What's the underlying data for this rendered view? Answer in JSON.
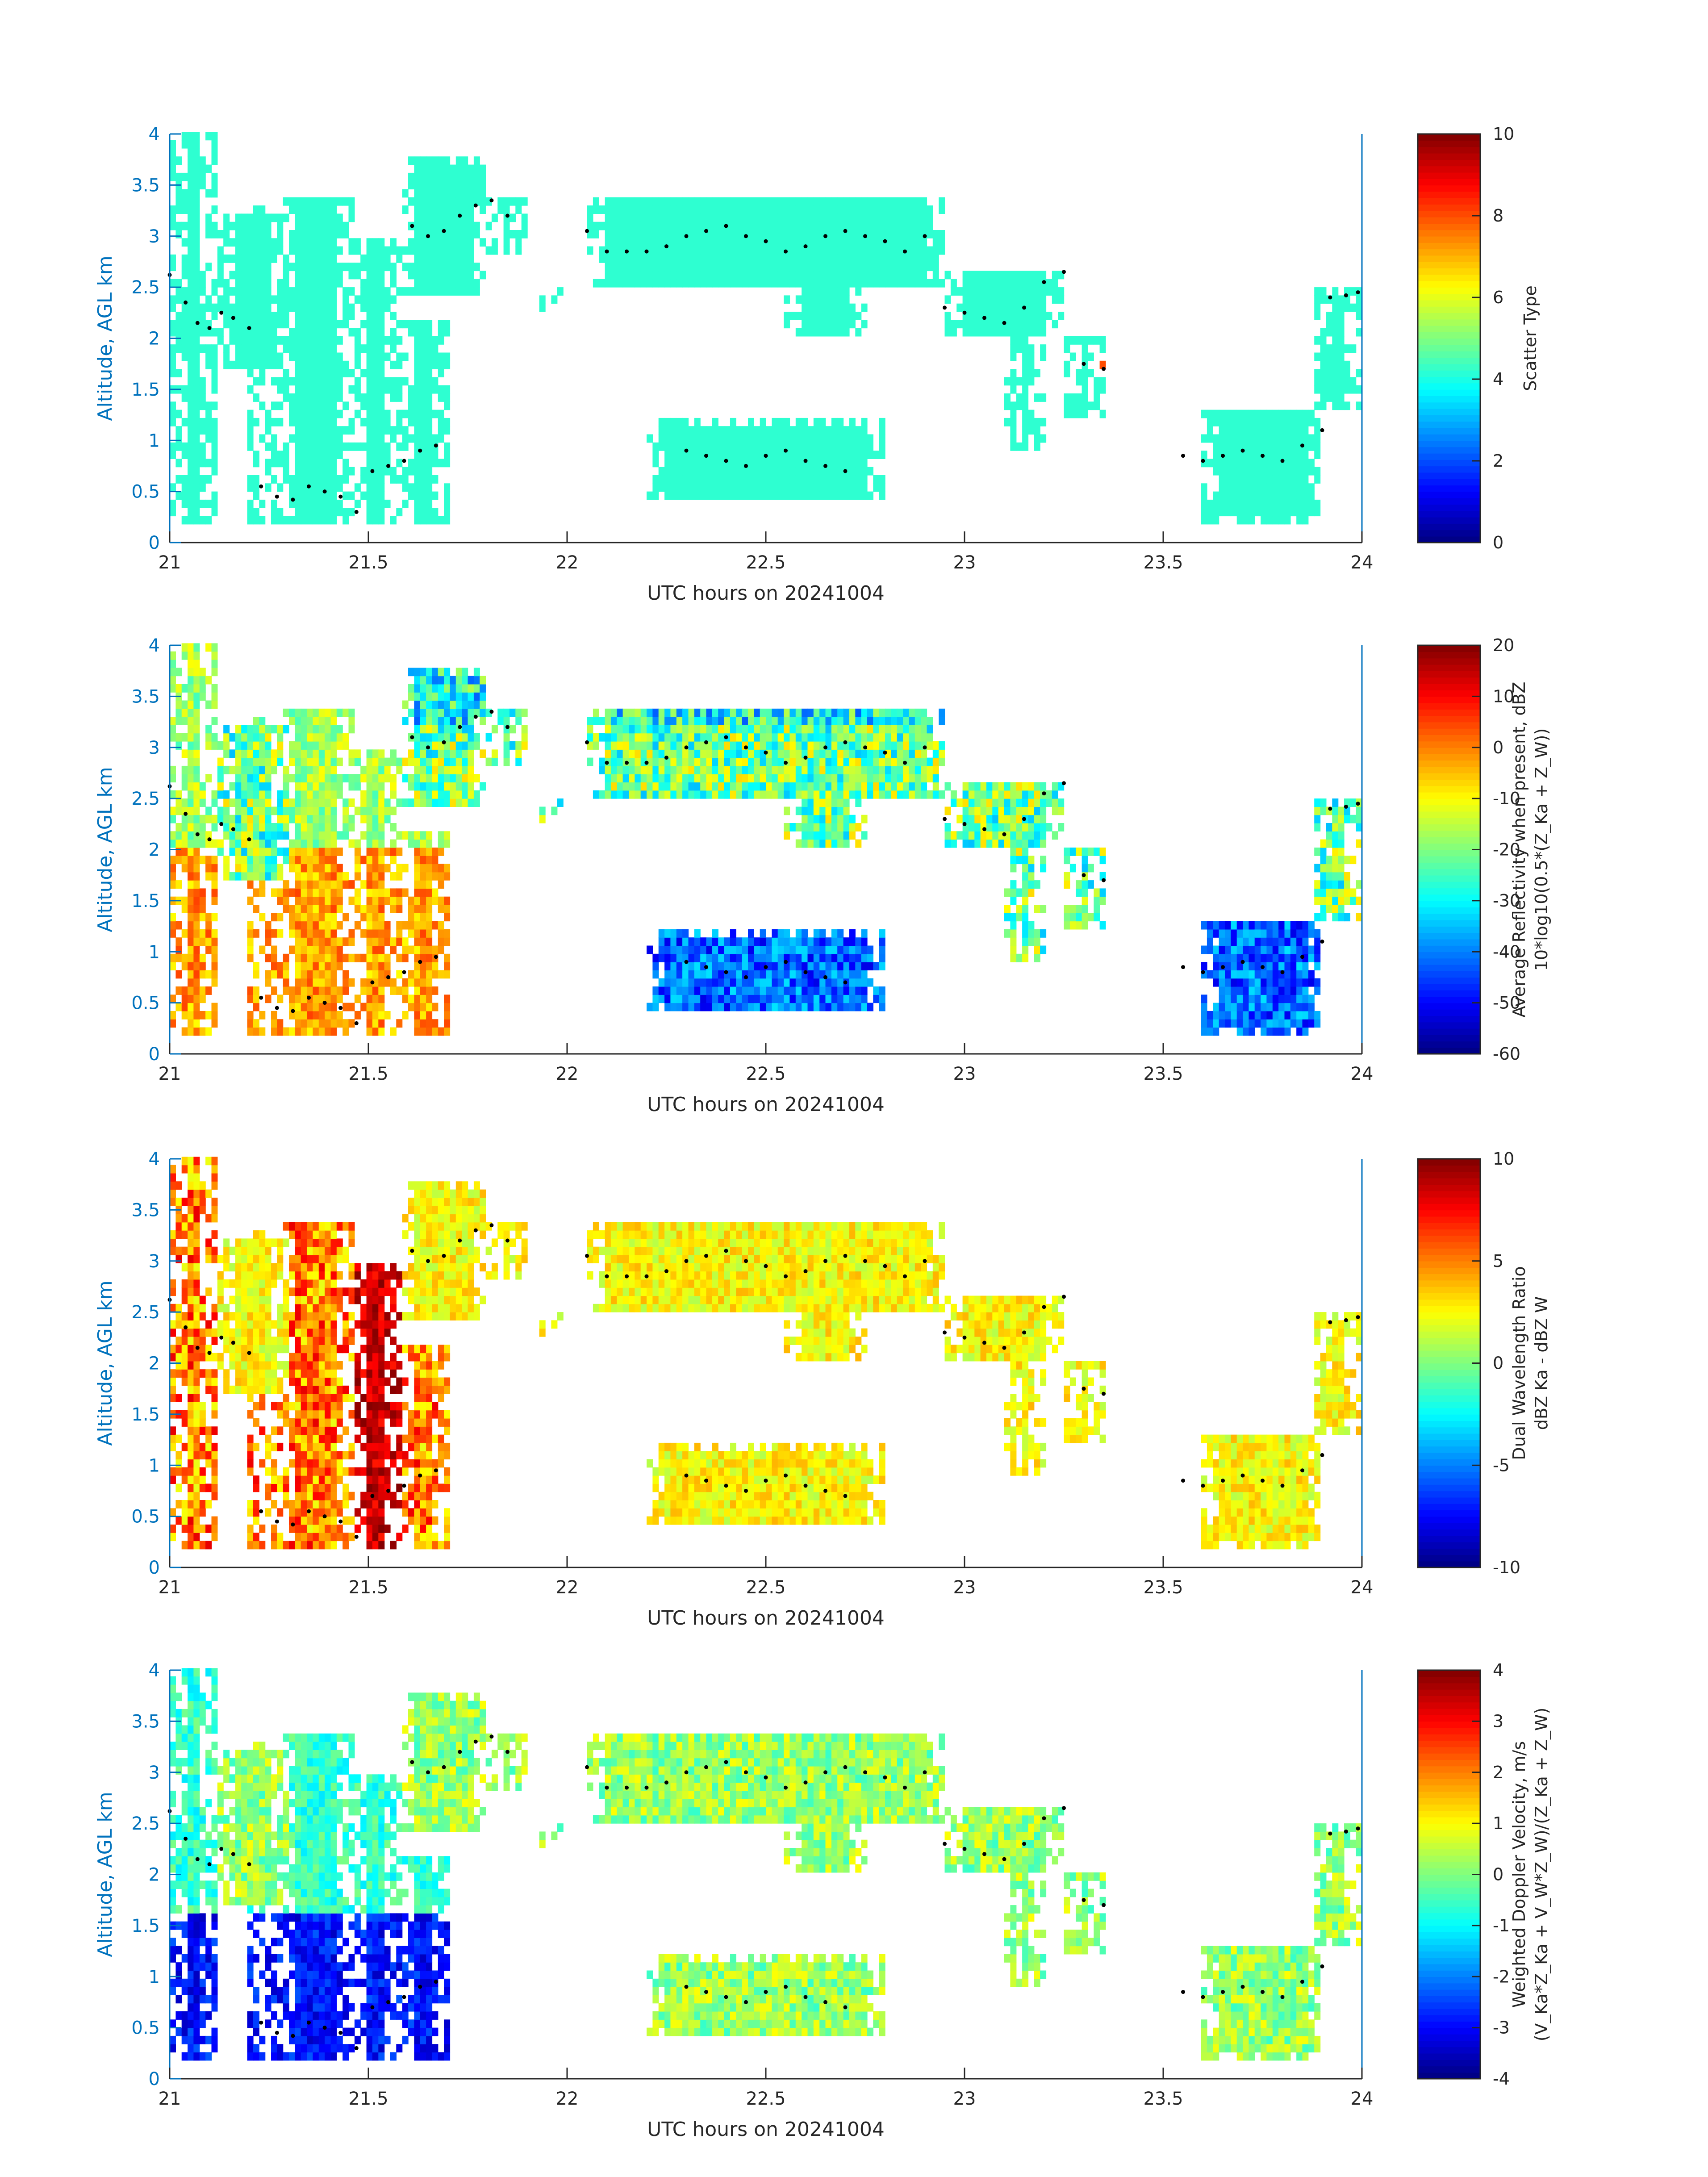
{
  "figure": {
    "date_label": "UTC hours on 20241004"
  },
  "chart_data": [
    {
      "type": "heatmap",
      "id": "scatter-type",
      "xlabel": "UTC hours on 20241004",
      "ylabel": "Altitude, AGL km",
      "xlim": [
        21,
        24
      ],
      "ylim": [
        0,
        4
      ],
      "xticks": [
        "21",
        "21.5",
        "22",
        "22.5",
        "23",
        "23.5",
        "24"
      ],
      "yticks": [
        "0",
        "0.5",
        "1",
        "1.5",
        "2",
        "2.5",
        "3",
        "3.5",
        "4"
      ],
      "colorbar": {
        "label_lines": [
          "Scatter Type"
        ],
        "range": [
          0,
          10
        ],
        "ticks": [
          "0",
          "2",
          "4",
          "6",
          "8",
          "10"
        ]
      },
      "field": "scatter_type"
    },
    {
      "type": "heatmap",
      "id": "average-reflectivity",
      "xlabel": "UTC hours on 20241004",
      "ylabel": "Altitude, AGL km",
      "xlim": [
        21,
        24
      ],
      "ylim": [
        0,
        4
      ],
      "xticks": [
        "21",
        "21.5",
        "22",
        "22.5",
        "23",
        "23.5",
        "24"
      ],
      "yticks": [
        "0",
        "0.5",
        "1",
        "1.5",
        "2",
        "2.5",
        "3",
        "3.5",
        "4"
      ],
      "colorbar": {
        "label_lines": [
          "Average Reflectivity when present, dBZ",
          "10*log10(0.5*(Z_Ka + Z_W))"
        ],
        "range": [
          -60,
          20
        ],
        "ticks": [
          "-60",
          "-50",
          "-40",
          "-30",
          "-20",
          "-10",
          "0",
          "10",
          "20"
        ]
      },
      "field": "reflectivity"
    },
    {
      "type": "heatmap",
      "id": "dual-wavelength-ratio",
      "xlabel": "UTC hours on 20241004",
      "ylabel": "Altitude, AGL km",
      "xlim": [
        21,
        24
      ],
      "ylim": [
        0,
        4
      ],
      "xticks": [
        "21",
        "21.5",
        "22",
        "22.5",
        "23",
        "23.5",
        "24"
      ],
      "yticks": [
        "0",
        "0.5",
        "1",
        "1.5",
        "2",
        "2.5",
        "3",
        "3.5",
        "4"
      ],
      "colorbar": {
        "label_lines": [
          "Dual Wavelength Ratio",
          "dBZ Ka - dBZ W"
        ],
        "range": [
          -10,
          10
        ],
        "ticks": [
          "-10",
          "-5",
          "0",
          "5",
          "10"
        ]
      },
      "field": "dwr"
    },
    {
      "type": "heatmap",
      "id": "weighted-doppler-velocity",
      "xlabel": "UTC hours on 20241004",
      "ylabel": "Altitude, AGL km",
      "xlim": [
        21,
        24
      ],
      "ylim": [
        0,
        4
      ],
      "xticks": [
        "21",
        "21.5",
        "22",
        "22.5",
        "23",
        "23.5",
        "24"
      ],
      "yticks": [
        "0",
        "0.5",
        "1",
        "1.5",
        "2",
        "2.5",
        "3",
        "3.5",
        "4"
      ],
      "colorbar": {
        "label_lines": [
          "Weighted Doppler Velocity, m/s",
          "(V_Ka*Z_Ka + V_W*Z_W)/(Z_Ka + Z_W)"
        ],
        "range": [
          -4,
          4
        ],
        "ticks": [
          "-4",
          "-3",
          "-2",
          "-1",
          "0",
          "1",
          "2",
          "3",
          "4"
        ]
      },
      "field": "velocity"
    }
  ],
  "cloud_regions": [
    {
      "name": "left-precip-column",
      "t0": 21.0,
      "t1": 21.12,
      "z0": 0.18,
      "z1": 4.0
    },
    {
      "name": "left-upper-cloud",
      "t0": 21.12,
      "t1": 21.3,
      "z0": 1.7,
      "z1": 3.3
    },
    {
      "name": "streak-column-1",
      "t0": 21.2,
      "t1": 21.28,
      "z0": 0.18,
      "z1": 2.3
    },
    {
      "name": "streak-column-2",
      "t0": 21.28,
      "t1": 21.46,
      "z0": 0.18,
      "z1": 3.4
    },
    {
      "name": "streak-column-3",
      "t0": 21.46,
      "t1": 21.58,
      "z0": 0.18,
      "z1": 3.0
    },
    {
      "name": "streak-column-4",
      "t0": 21.58,
      "t1": 21.7,
      "z0": 0.18,
      "z1": 2.2
    },
    {
      "name": "upper-layer-west",
      "t0": 21.58,
      "t1": 21.8,
      "z0": 2.4,
      "z1": 3.75
    },
    {
      "name": "upper-layer-west-tail",
      "t0": 21.8,
      "t1": 21.9,
      "z0": 2.8,
      "z1": 3.4
    },
    {
      "name": "isolated-cell",
      "t0": 21.93,
      "t1": 21.99,
      "z0": 2.3,
      "z1": 2.5
    },
    {
      "name": "upper-layer-central",
      "t0": 22.05,
      "t1": 22.95,
      "z0": 2.5,
      "z1": 3.4
    },
    {
      "name": "fall-streak-central",
      "t0": 22.55,
      "t1": 22.75,
      "z0": 2.0,
      "z1": 2.9
    },
    {
      "name": "mid-layer-east",
      "t0": 22.95,
      "t1": 23.25,
      "z0": 2.0,
      "z1": 2.7
    },
    {
      "name": "fall-streak-east",
      "t0": 23.1,
      "t1": 23.2,
      "z0": 0.9,
      "z1": 2.2
    },
    {
      "name": "fall-streak-east-2",
      "t0": 23.25,
      "t1": 23.35,
      "z0": 1.2,
      "z1": 2.0
    },
    {
      "name": "low-cloud-central",
      "t0": 22.2,
      "t1": 22.8,
      "z0": 0.4,
      "z1": 1.2
    },
    {
      "name": "low-cloud-east",
      "t0": 23.6,
      "t1": 23.9,
      "z0": 0.2,
      "z1": 1.3
    },
    {
      "name": "upper-right-cloud",
      "t0": 23.88,
      "t1": 24.0,
      "z0": 1.3,
      "z1": 2.5
    }
  ],
  "melting_layer_dots": [
    [
      21.0,
      2.62
    ],
    [
      21.04,
      2.35
    ],
    [
      21.07,
      2.15
    ],
    [
      21.1,
      2.1
    ],
    [
      21.13,
      2.25
    ],
    [
      21.16,
      2.2
    ],
    [
      21.2,
      2.1
    ],
    [
      21.23,
      0.55
    ],
    [
      21.27,
      0.45
    ],
    [
      21.31,
      0.42
    ],
    [
      21.35,
      0.55
    ],
    [
      21.39,
      0.5
    ],
    [
      21.43,
      0.45
    ],
    [
      21.47,
      0.3
    ],
    [
      21.51,
      0.7
    ],
    [
      21.55,
      0.75
    ],
    [
      21.59,
      0.8
    ],
    [
      21.63,
      0.9
    ],
    [
      21.67,
      0.95
    ],
    [
      21.61,
      3.1
    ],
    [
      21.65,
      3.0
    ],
    [
      21.69,
      3.05
    ],
    [
      21.73,
      3.2
    ],
    [
      21.77,
      3.3
    ],
    [
      21.81,
      3.35
    ],
    [
      21.85,
      3.2
    ],
    [
      22.05,
      3.05
    ],
    [
      22.1,
      2.85
    ],
    [
      22.15,
      2.85
    ],
    [
      22.2,
      2.85
    ],
    [
      22.25,
      2.9
    ],
    [
      22.3,
      3.0
    ],
    [
      22.35,
      3.05
    ],
    [
      22.4,
      3.1
    ],
    [
      22.45,
      3.0
    ],
    [
      22.5,
      2.95
    ],
    [
      22.55,
      2.85
    ],
    [
      22.6,
      2.9
    ],
    [
      22.65,
      3.0
    ],
    [
      22.7,
      3.05
    ],
    [
      22.75,
      3.0
    ],
    [
      22.8,
      2.95
    ],
    [
      22.85,
      2.85
    ],
    [
      22.9,
      3.0
    ],
    [
      22.3,
      0.9
    ],
    [
      22.35,
      0.85
    ],
    [
      22.4,
      0.8
    ],
    [
      22.45,
      0.75
    ],
    [
      22.5,
      0.85
    ],
    [
      22.55,
      0.9
    ],
    [
      22.6,
      0.8
    ],
    [
      22.65,
      0.75
    ],
    [
      22.7,
      0.7
    ],
    [
      22.95,
      2.3
    ],
    [
      23.0,
      2.25
    ],
    [
      23.05,
      2.2
    ],
    [
      23.1,
      2.15
    ],
    [
      23.15,
      2.3
    ],
    [
      23.2,
      2.55
    ],
    [
      23.25,
      2.65
    ],
    [
      23.3,
      1.75
    ],
    [
      23.35,
      1.7
    ],
    [
      23.55,
      0.85
    ],
    [
      23.6,
      0.8
    ],
    [
      23.65,
      0.85
    ],
    [
      23.7,
      0.9
    ],
    [
      23.75,
      0.85
    ],
    [
      23.8,
      0.8
    ],
    [
      23.85,
      0.95
    ],
    [
      23.9,
      1.1
    ],
    [
      23.92,
      2.4
    ],
    [
      23.96,
      2.42
    ],
    [
      23.99,
      2.45
    ]
  ]
}
